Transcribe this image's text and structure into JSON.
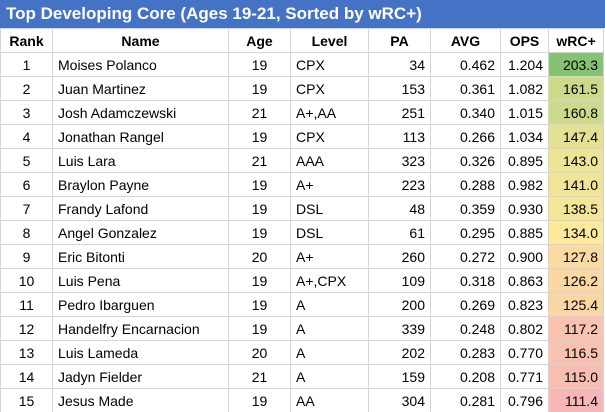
{
  "title": "Top Developing Core (Ages 19-21, Sorted by wRC+)",
  "table": {
    "header": [
      "Rank",
      "Name",
      "Age",
      "Level",
      "PA",
      "AVG",
      "OPS",
      "wRC+"
    ],
    "rows": [
      [
        "1",
        "Moises Polanco",
        "19",
        "CPX",
        "34",
        "0.462",
        "1.204",
        "203.3"
      ],
      [
        "2",
        "Juan Martinez",
        "19",
        "CPX",
        "153",
        "0.361",
        "1.082",
        "161.5"
      ],
      [
        "3",
        "Josh Adamczewski",
        "21",
        "A+,AA",
        "251",
        "0.340",
        "1.015",
        "160.8"
      ],
      [
        "4",
        "Jonathan Rangel",
        "19",
        "CPX",
        "113",
        "0.266",
        "1.034",
        "147.4"
      ],
      [
        "5",
        "Luis Lara",
        "21",
        "AAA",
        "323",
        "0.326",
        "0.895",
        "143.0"
      ],
      [
        "6",
        "Braylon Payne",
        "19",
        "A+",
        "223",
        "0.288",
        "0.982",
        "141.0"
      ],
      [
        "7",
        "Frandy Lafond",
        "19",
        "DSL",
        "48",
        "0.359",
        "0.930",
        "138.5"
      ],
      [
        "8",
        "Angel Gonzalez",
        "19",
        "DSL",
        "61",
        "0.295",
        "0.885",
        "134.0"
      ],
      [
        "9",
        "Eric Bitonti",
        "20",
        "A+",
        "260",
        "0.272",
        "0.900",
        "127.8"
      ],
      [
        "10",
        "Luis Pena",
        "19",
        "A+,CPX",
        "109",
        "0.318",
        "0.863",
        "126.2"
      ],
      [
        "11",
        "Pedro Ibarguen",
        "19",
        "A",
        "200",
        "0.269",
        "0.823",
        "125.4"
      ],
      [
        "12",
        "Handelfry Encarnacion",
        "19",
        "A",
        "339",
        "0.248",
        "0.802",
        "117.2"
      ],
      [
        "13",
        "Luis Lameda",
        "20",
        "A",
        "202",
        "0.283",
        "0.770",
        "116.5"
      ],
      [
        "14",
        "Jadyn Fielder",
        "21",
        "A",
        "159",
        "0.208",
        "0.771",
        "115.0"
      ],
      [
        "15",
        "Jesus Made",
        "19",
        "AA",
        "304",
        "0.281",
        "0.796",
        "111.4"
      ]
    ],
    "color_scale": {
      "column": 7,
      "min_color": "#f8b6b6",
      "mid_color": "#fce99a",
      "max_color": "#86c272"
    }
  }
}
